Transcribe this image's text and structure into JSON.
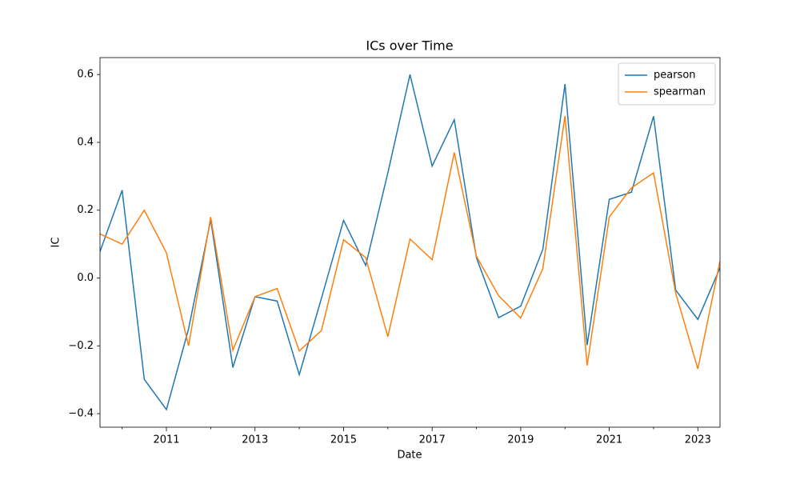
{
  "chart_data": {
    "type": "line",
    "title": "ICs over Time",
    "xlabel": "Date",
    "ylabel": "IC",
    "x": [
      2009.5,
      2010,
      2010.5,
      2011,
      2011.5,
      2012,
      2012.5,
      2013,
      2013.5,
      2014,
      2014.5,
      2015,
      2015.5,
      2016,
      2016.5,
      2017,
      2017.5,
      2018,
      2018.5,
      2019,
      2019.5,
      2020,
      2020.5,
      2021,
      2021.5,
      2022,
      2022.5,
      2023,
      2023.5
    ],
    "series": [
      {
        "name": "pearson",
        "color": "#1f77b4",
        "values": [
          0.078,
          0.259,
          -0.299,
          -0.388,
          -0.15,
          0.172,
          -0.264,
          -0.055,
          -0.068,
          -0.285,
          -0.06,
          0.17,
          0.037,
          0.31,
          0.6,
          0.33,
          0.467,
          0.06,
          -0.117,
          -0.083,
          0.085,
          0.572,
          -0.198,
          0.232,
          0.253,
          0.477,
          -0.036,
          -0.122,
          0.03
        ]
      },
      {
        "name": "spearman",
        "color": "#ff7f0e",
        "values": [
          0.13,
          0.1,
          0.2,
          0.074,
          -0.2,
          0.18,
          -0.213,
          -0.055,
          -0.031,
          -0.215,
          -0.155,
          0.113,
          0.06,
          -0.173,
          0.115,
          0.054,
          0.37,
          0.064,
          -0.052,
          -0.118,
          0.028,
          0.478,
          -0.258,
          0.18,
          0.266,
          0.31,
          -0.045,
          -0.268,
          0.05
        ]
      }
    ],
    "xlim": [
      2009.5,
      2023.5
    ],
    "xticks": [
      2011,
      2013,
      2015,
      2017,
      2019,
      2021,
      2023
    ],
    "xminorticks": [
      2010,
      2012,
      2014,
      2016,
      2018,
      2020,
      2022
    ],
    "ylim": [
      -0.44,
      0.65
    ],
    "yticks": [
      {
        "value": -0.4,
        "label": "−0.4"
      },
      {
        "value": -0.2,
        "label": "−0.2"
      },
      {
        "value": 0,
        "label": "0.0"
      },
      0.2,
      0.4,
      0.6
    ],
    "legend": "upper right"
  }
}
